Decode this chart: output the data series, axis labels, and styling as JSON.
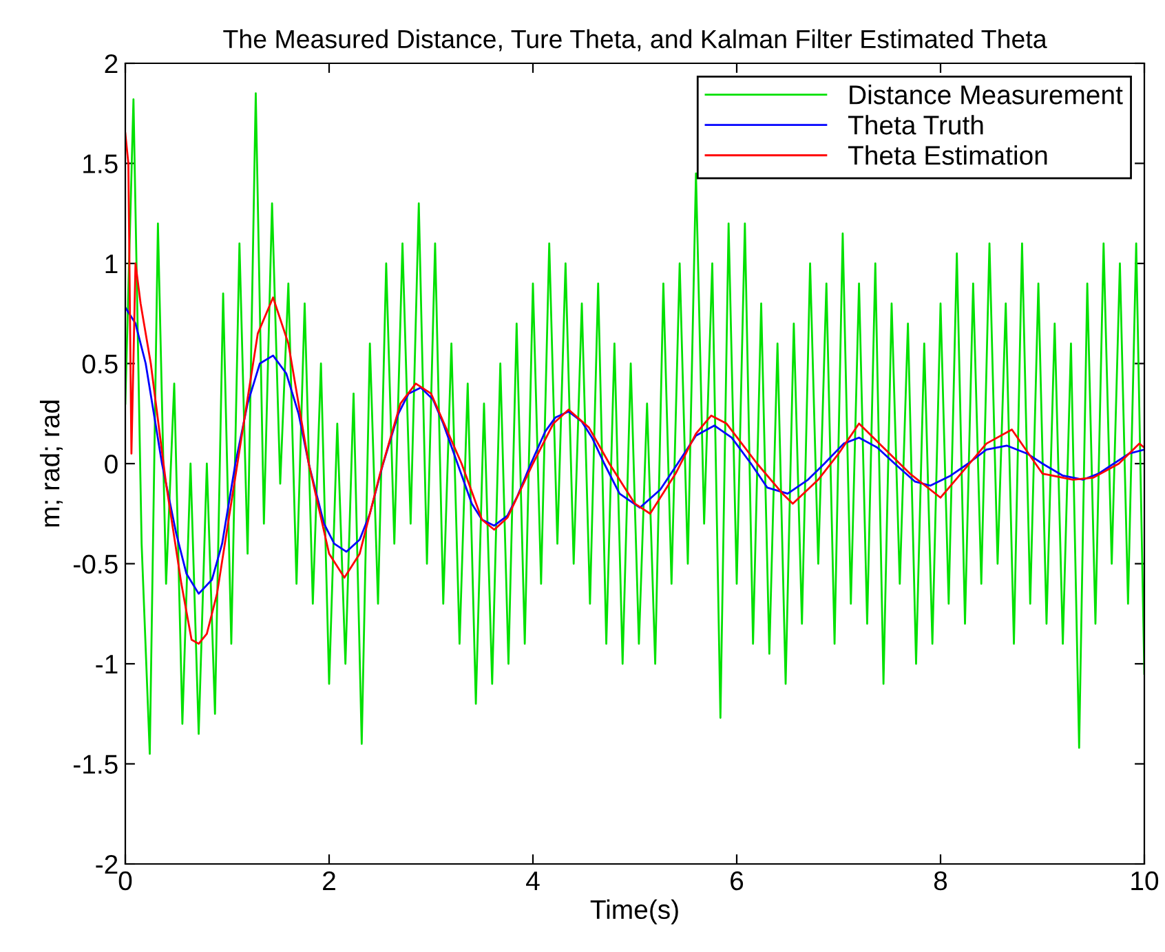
{
  "chart_data": {
    "type": "line",
    "title": "The Measured Distance, Ture Theta, and Kalman Filter Estimated Theta",
    "xlabel": "Time(s)",
    "ylabel": "m; rad; rad",
    "xlim": [
      0,
      10
    ],
    "ylim": [
      -2,
      2
    ],
    "xticks": [
      0,
      2,
      4,
      6,
      8,
      10
    ],
    "yticks": [
      -2,
      -1.5,
      -1,
      -0.5,
      0,
      0.5,
      1,
      1.5,
      2
    ],
    "grid": false,
    "legend": "top right",
    "series": [
      {
        "name": "Distance Measurement",
        "color": "#00e000",
        "x": [
          0,
          0.08,
          0.16,
          0.24,
          0.32,
          0.4,
          0.48,
          0.56,
          0.64,
          0.72,
          0.8,
          0.88,
          0.96,
          1.04,
          1.12,
          1.2,
          1.28,
          1.36,
          1.44,
          1.52,
          1.6,
          1.68,
          1.76,
          1.84,
          1.92,
          2.0,
          2.08,
          2.16,
          2.24,
          2.32,
          2.4,
          2.48,
          2.56,
          2.64,
          2.72,
          2.8,
          2.88,
          2.96,
          3.04,
          3.12,
          3.2,
          3.28,
          3.36,
          3.44,
          3.52,
          3.6,
          3.68,
          3.76,
          3.84,
          3.92,
          4.0,
          4.08,
          4.16,
          4.24,
          4.32,
          4.4,
          4.48,
          4.56,
          4.64,
          4.72,
          4.8,
          4.88,
          4.96,
          5.04,
          5.12,
          5.2,
          5.28,
          5.36,
          5.44,
          5.52,
          5.6,
          5.68,
          5.76,
          5.84,
          5.92,
          6.0,
          6.08,
          6.16,
          6.24,
          6.32,
          6.4,
          6.48,
          6.56,
          6.64,
          6.72,
          6.8,
          6.88,
          6.96,
          7.04,
          7.12,
          7.2,
          7.28,
          7.36,
          7.44,
          7.52,
          7.6,
          7.68,
          7.76,
          7.84,
          7.92,
          8.0,
          8.08,
          8.16,
          8.24,
          8.32,
          8.4,
          8.48,
          8.56,
          8.64,
          8.72,
          8.8,
          8.88,
          8.96,
          9.04,
          9.12,
          9.2,
          9.28,
          9.36,
          9.44,
          9.52,
          9.6,
          9.68,
          9.76,
          9.84,
          9.92,
          10.0
        ],
        "values": [
          0.3,
          1.82,
          -0.4,
          -1.45,
          1.2,
          -0.6,
          0.4,
          -1.3,
          0.0,
          -1.35,
          0.0,
          -1.25,
          0.85,
          -0.9,
          1.1,
          -0.45,
          1.85,
          -0.3,
          1.3,
          -0.1,
          0.9,
          -0.6,
          0.8,
          -0.7,
          0.5,
          -1.1,
          0.2,
          -1.0,
          0.35,
          -1.4,
          0.6,
          -0.7,
          1.0,
          -0.4,
          1.1,
          -0.3,
          1.3,
          -0.5,
          1.1,
          -0.7,
          0.6,
          -0.9,
          0.4,
          -1.2,
          0.3,
          -1.1,
          0.5,
          -1.0,
          0.7,
          -0.9,
          0.9,
          -0.6,
          1.1,
          -0.4,
          1.0,
          -0.5,
          0.8,
          -0.7,
          0.9,
          -0.9,
          0.6,
          -1.0,
          0.5,
          -0.9,
          0.3,
          -1.0,
          0.9,
          -0.6,
          1.0,
          -0.5,
          1.45,
          -0.3,
          1.0,
          -1.27,
          1.2,
          -0.6,
          1.2,
          -0.9,
          0.8,
          -0.95,
          0.6,
          -1.1,
          0.7,
          -0.8,
          1.0,
          -0.5,
          0.9,
          -0.9,
          1.15,
          -0.7,
          0.9,
          -0.8,
          1.0,
          -1.1,
          0.8,
          -0.6,
          0.7,
          -1.0,
          0.6,
          -0.9,
          0.8,
          -0.7,
          1.05,
          -0.8,
          0.9,
          -0.6,
          1.1,
          -0.5,
          0.8,
          -0.9,
          1.1,
          -0.7,
          0.9,
          -0.8,
          0.7,
          -0.9,
          0.6,
          -1.42,
          0.9,
          -0.8,
          1.1,
          -0.5,
          1.0,
          -0.7,
          1.1,
          -1.05
        ]
      },
      {
        "name": "Theta Truth",
        "color": "#0000ff",
        "x": [
          0,
          0.1,
          0.2,
          0.36,
          0.5,
          0.6,
          0.72,
          0.85,
          0.95,
          1.08,
          1.2,
          1.32,
          1.45,
          1.58,
          1.7,
          1.8,
          1.95,
          2.05,
          2.17,
          2.3,
          2.4,
          2.53,
          2.68,
          2.78,
          2.9,
          3.02,
          3.12,
          3.26,
          3.4,
          3.5,
          3.62,
          3.75,
          3.85,
          3.98,
          4.12,
          4.22,
          4.35,
          4.48,
          4.58,
          4.7,
          4.85,
          5.05,
          5.25,
          5.42,
          5.6,
          5.78,
          5.95,
          6.14,
          6.3,
          6.5,
          6.7,
          6.86,
          7.05,
          7.2,
          7.38,
          7.55,
          7.75,
          7.9,
          8.1,
          8.27,
          8.45,
          8.65,
          8.85,
          9.0,
          9.2,
          9.4,
          9.55,
          9.7,
          9.85,
          10.0
        ],
        "values": [
          0.78,
          0.7,
          0.5,
          0.0,
          -0.35,
          -0.55,
          -0.65,
          -0.58,
          -0.4,
          0.0,
          0.3,
          0.5,
          0.54,
          0.45,
          0.25,
          0.0,
          -0.3,
          -0.4,
          -0.44,
          -0.38,
          -0.25,
          0.0,
          0.25,
          0.35,
          0.38,
          0.32,
          0.2,
          0.0,
          -0.2,
          -0.28,
          -0.31,
          -0.26,
          -0.16,
          0.0,
          0.16,
          0.23,
          0.26,
          0.21,
          0.13,
          0.0,
          -0.15,
          -0.22,
          -0.13,
          0.0,
          0.14,
          0.19,
          0.13,
          0.0,
          -0.12,
          -0.15,
          -0.08,
          0.0,
          0.1,
          0.13,
          0.08,
          0.0,
          -0.09,
          -0.11,
          -0.06,
          0.0,
          0.07,
          0.09,
          0.05,
          0.0,
          -0.06,
          -0.08,
          -0.05,
          0.0,
          0.05,
          0.07
        ]
      },
      {
        "name": "Theta Estimation",
        "color": "#ff0000",
        "x": [
          0,
          0.03,
          0.06,
          0.1,
          0.15,
          0.25,
          0.4,
          0.55,
          0.65,
          0.72,
          0.8,
          0.9,
          1.1,
          1.3,
          1.45,
          1.6,
          1.8,
          2.0,
          2.15,
          2.3,
          2.5,
          2.7,
          2.85,
          3.0,
          3.3,
          3.5,
          3.62,
          3.75,
          4.0,
          4.2,
          4.35,
          4.55,
          4.75,
          5.0,
          5.15,
          5.4,
          5.6,
          5.75,
          5.9,
          6.2,
          6.45,
          6.55,
          6.8,
          7.0,
          7.2,
          7.4,
          7.7,
          8.0,
          8.2,
          8.45,
          8.7,
          9.0,
          9.3,
          9.5,
          9.75,
          9.95,
          10.0
        ],
        "values": [
          1.65,
          1.5,
          0.05,
          1.0,
          0.8,
          0.5,
          -0.1,
          -0.6,
          -0.88,
          -0.9,
          -0.85,
          -0.65,
          0.0,
          0.65,
          0.83,
          0.6,
          0.0,
          -0.45,
          -0.57,
          -0.45,
          -0.05,
          0.3,
          0.4,
          0.35,
          0.0,
          -0.28,
          -0.33,
          -0.27,
          0.0,
          0.2,
          0.27,
          0.18,
          0.0,
          -0.2,
          -0.25,
          -0.05,
          0.15,
          0.24,
          0.2,
          0.0,
          -0.15,
          -0.2,
          -0.08,
          0.05,
          0.2,
          0.1,
          -0.05,
          -0.17,
          -0.05,
          0.1,
          0.17,
          -0.05,
          -0.08,
          -0.07,
          0.0,
          0.1,
          0.08
        ]
      }
    ]
  }
}
